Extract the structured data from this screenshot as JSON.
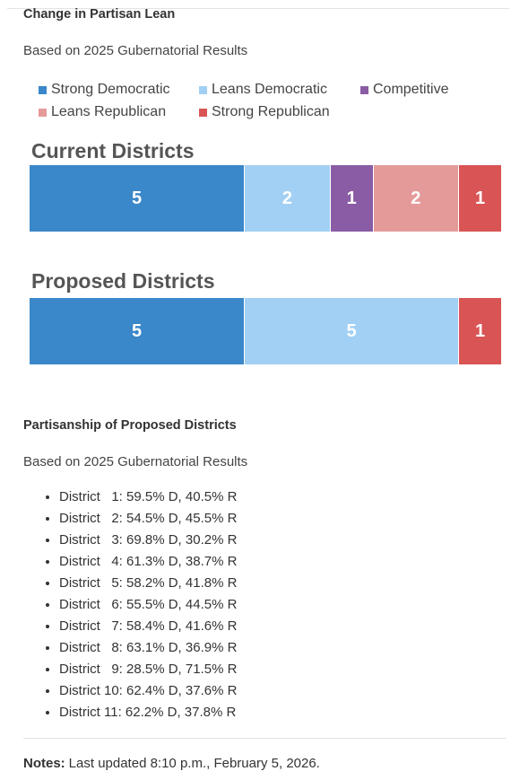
{
  "section1": {
    "title": "Change in Partisan Lean",
    "subtitle": "Based on 2025 Gubernatorial Results"
  },
  "legend": [
    {
      "label": "Strong Democratic",
      "color": "#3a87c9"
    },
    {
      "label": "Leans Democratic",
      "color": "#a2d0f4"
    },
    {
      "label": "Competitive",
      "color": "#8a5ca5"
    },
    {
      "label": "Leans Republican",
      "color": "#e59a9a"
    },
    {
      "label": "Strong Republican",
      "color": "#d95454"
    }
  ],
  "chart_data": [
    {
      "type": "bar",
      "orientation": "horizontal-stacked",
      "title": "Current Districts",
      "categories": [
        "Strong Democratic",
        "Leans Democratic",
        "Competitive",
        "Leans Republican",
        "Strong Republican"
      ],
      "values": [
        5,
        2,
        1,
        2,
        1
      ],
      "labels": [
        "5",
        "2",
        "1",
        "2",
        "1"
      ],
      "total": 11
    },
    {
      "type": "bar",
      "orientation": "horizontal-stacked",
      "title": "Proposed Districts",
      "categories": [
        "Strong Democratic",
        "Leans Democratic",
        "Competitive",
        "Leans Republican",
        "Strong Republican"
      ],
      "values": [
        5,
        5,
        0,
        0,
        1
      ],
      "labels": [
        "5",
        "5",
        "",
        "",
        "1"
      ],
      "total": 11
    }
  ],
  "section2": {
    "title": "Partisanship of Proposed Districts",
    "subtitle": "Based on 2025 Gubernatorial Results",
    "districts": [
      {
        "name": "District   1:",
        "value": "59.5% D, 40.5% R"
      },
      {
        "name": "District   2:",
        "value": "54.5% D, 45.5% R"
      },
      {
        "name": "District   3:",
        "value": "69.8% D, 30.2% R"
      },
      {
        "name": "District   4:",
        "value": "61.3% D, 38.7% R"
      },
      {
        "name": "District   5:",
        "value": "58.2% D, 41.8% R"
      },
      {
        "name": "District   6:",
        "value": "55.5% D, 44.5% R"
      },
      {
        "name": "District   7:",
        "value": "58.4% D, 41.6% R"
      },
      {
        "name": "District   8:",
        "value": "63.1% D, 36.9% R"
      },
      {
        "name": "District   9:",
        "value": "28.5% D, 71.5% R"
      },
      {
        "name": "District 10:",
        "value": "62.4% D, 37.6% R"
      },
      {
        "name": "District 11:",
        "value": "62.2% D, 37.8% R"
      }
    ]
  },
  "notes": {
    "label": "Notes:",
    "text": "Last updated 8:10 p.m., February 5, 2026."
  }
}
